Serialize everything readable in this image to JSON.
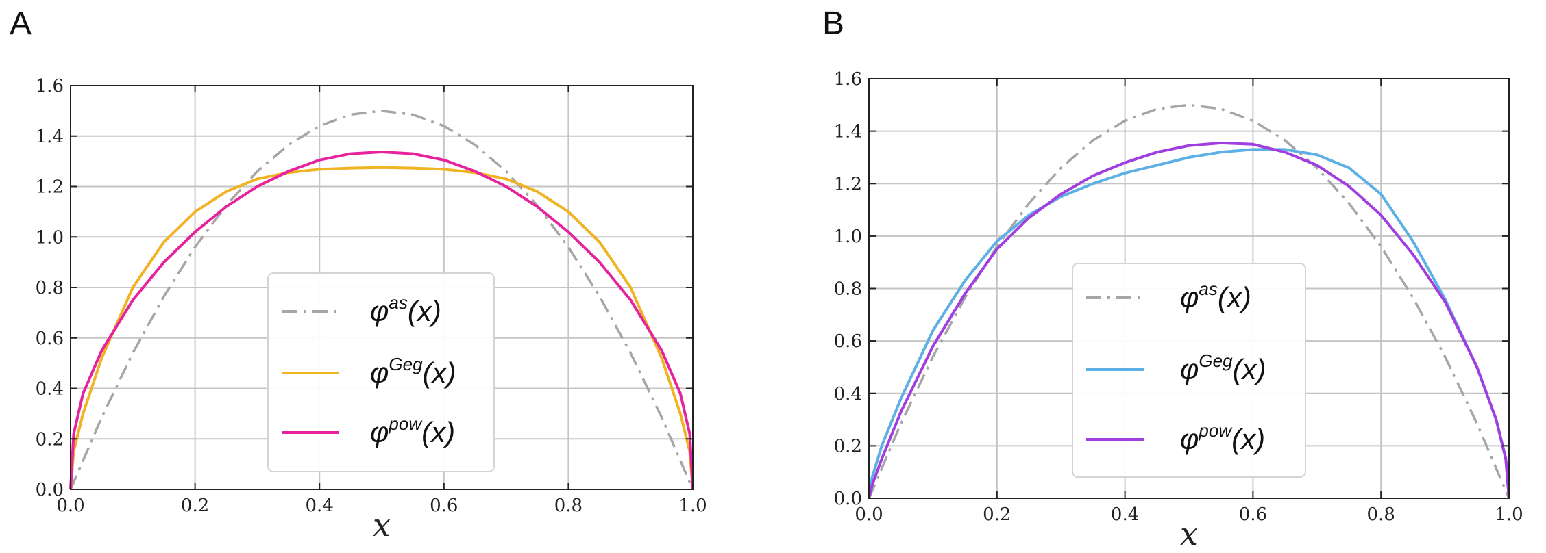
{
  "chart_data": [
    {
      "type": "line",
      "panel_label": "A",
      "xlabel": "x",
      "ylabel": "",
      "xlim": [
        0,
        1
      ],
      "ylim": [
        0,
        1.6
      ],
      "x_ticks": [
        "0.0",
        "0.2",
        "0.4",
        "0.6",
        "0.8",
        "1.0"
      ],
      "y_ticks": [
        "0.0",
        "0.2",
        "0.4",
        "0.6",
        "0.8",
        "1.0",
        "1.2",
        "1.4",
        "1.6"
      ],
      "grid": true,
      "legend_position": "bottom-center",
      "series": [
        {
          "base": "φ",
          "sup": "as",
          "arg": "(x)",
          "color": "#a6a6a6",
          "style": "dashdot",
          "x": [
            0,
            0.05,
            0.1,
            0.15,
            0.2,
            0.25,
            0.3,
            0.35,
            0.4,
            0.45,
            0.5,
            0.55,
            0.6,
            0.65,
            0.7,
            0.75,
            0.8,
            0.85,
            0.9,
            0.95,
            1
          ],
          "y": [
            0,
            0.285,
            0.54,
            0.765,
            0.96,
            1.125,
            1.26,
            1.365,
            1.44,
            1.485,
            1.5,
            1.485,
            1.44,
            1.365,
            1.26,
            1.125,
            0.96,
            0.765,
            0.54,
            0.285,
            0
          ]
        },
        {
          "base": "φ",
          "sup": "Geg",
          "arg": "(x)",
          "color": "#f0b323",
          "style": "solid",
          "x": [
            0,
            0.005,
            0.02,
            0.05,
            0.1,
            0.15,
            0.2,
            0.25,
            0.3,
            0.35,
            0.4,
            0.45,
            0.5,
            0.55,
            0.6,
            0.65,
            0.7,
            0.75,
            0.8,
            0.85,
            0.9,
            0.95,
            0.98,
            0.995,
            1
          ],
          "y": [
            0,
            0.15,
            0.3,
            0.52,
            0.8,
            0.98,
            1.1,
            1.18,
            1.23,
            1.255,
            1.268,
            1.273,
            1.275,
            1.273,
            1.268,
            1.255,
            1.23,
            1.18,
            1.1,
            0.98,
            0.8,
            0.52,
            0.3,
            0.15,
            0
          ]
        },
        {
          "base": "φ",
          "sup": "pow",
          "arg": "(x)",
          "color": "#e6239c",
          "style": "solid",
          "x": [
            0,
            0.005,
            0.02,
            0.05,
            0.1,
            0.15,
            0.2,
            0.25,
            0.3,
            0.35,
            0.4,
            0.45,
            0.5,
            0.55,
            0.6,
            0.65,
            0.7,
            0.75,
            0.8,
            0.85,
            0.9,
            0.95,
            0.98,
            0.995,
            1
          ],
          "y": [
            0,
            0.22,
            0.38,
            0.55,
            0.75,
            0.9,
            1.02,
            1.12,
            1.2,
            1.26,
            1.305,
            1.33,
            1.337,
            1.33,
            1.305,
            1.26,
            1.2,
            1.12,
            1.02,
            0.9,
            0.75,
            0.55,
            0.38,
            0.22,
            0
          ]
        }
      ]
    },
    {
      "type": "line",
      "panel_label": "B",
      "xlabel": "x",
      "ylabel": "",
      "xlim": [
        0,
        1
      ],
      "ylim": [
        0,
        1.6
      ],
      "x_ticks": [
        "0.0",
        "0.2",
        "0.4",
        "0.6",
        "0.8",
        "1.0"
      ],
      "y_ticks": [
        "0.0",
        "0.2",
        "0.4",
        "0.6",
        "0.8",
        "1.0",
        "1.2",
        "1.4",
        "1.6"
      ],
      "grid": true,
      "legend_position": "bottom-center",
      "series": [
        {
          "base": "φ",
          "sup": "as",
          "arg": "(x)",
          "color": "#a6a6a6",
          "style": "dashdot",
          "x": [
            0,
            0.05,
            0.1,
            0.15,
            0.2,
            0.25,
            0.3,
            0.35,
            0.4,
            0.45,
            0.5,
            0.55,
            0.6,
            0.65,
            0.7,
            0.75,
            0.8,
            0.85,
            0.9,
            0.95,
            1
          ],
          "y": [
            0,
            0.285,
            0.54,
            0.765,
            0.96,
            1.125,
            1.26,
            1.365,
            1.44,
            1.485,
            1.5,
            1.485,
            1.44,
            1.365,
            1.26,
            1.125,
            0.96,
            0.765,
            0.54,
            0.285,
            0
          ]
        },
        {
          "base": "φ",
          "sup": "Geg",
          "arg": "(x)",
          "color": "#5db0e4",
          "style": "solid",
          "x": [
            0,
            0.005,
            0.02,
            0.05,
            0.1,
            0.15,
            0.2,
            0.25,
            0.3,
            0.35,
            0.4,
            0.45,
            0.5,
            0.55,
            0.6,
            0.65,
            0.7,
            0.75,
            0.8,
            0.85,
            0.9,
            0.95,
            0.98,
            0.995,
            1
          ],
          "y": [
            0,
            0.08,
            0.2,
            0.38,
            0.64,
            0.83,
            0.98,
            1.08,
            1.15,
            1.2,
            1.24,
            1.27,
            1.3,
            1.32,
            1.33,
            1.33,
            1.31,
            1.26,
            1.16,
            0.98,
            0.76,
            0.5,
            0.3,
            0.15,
            0
          ]
        },
        {
          "base": "φ",
          "sup": "pow",
          "arg": "(x)",
          "color": "#a03ee0",
          "style": "solid",
          "x": [
            0,
            0.005,
            0.02,
            0.05,
            0.1,
            0.15,
            0.2,
            0.25,
            0.3,
            0.35,
            0.4,
            0.45,
            0.5,
            0.55,
            0.6,
            0.65,
            0.7,
            0.75,
            0.8,
            0.85,
            0.9,
            0.95,
            0.98,
            0.995,
            1
          ],
          "y": [
            0,
            0.05,
            0.15,
            0.33,
            0.58,
            0.78,
            0.95,
            1.07,
            1.16,
            1.23,
            1.28,
            1.32,
            1.345,
            1.355,
            1.35,
            1.32,
            1.27,
            1.19,
            1.08,
            0.93,
            0.75,
            0.5,
            0.3,
            0.15,
            0
          ]
        }
      ]
    }
  ]
}
